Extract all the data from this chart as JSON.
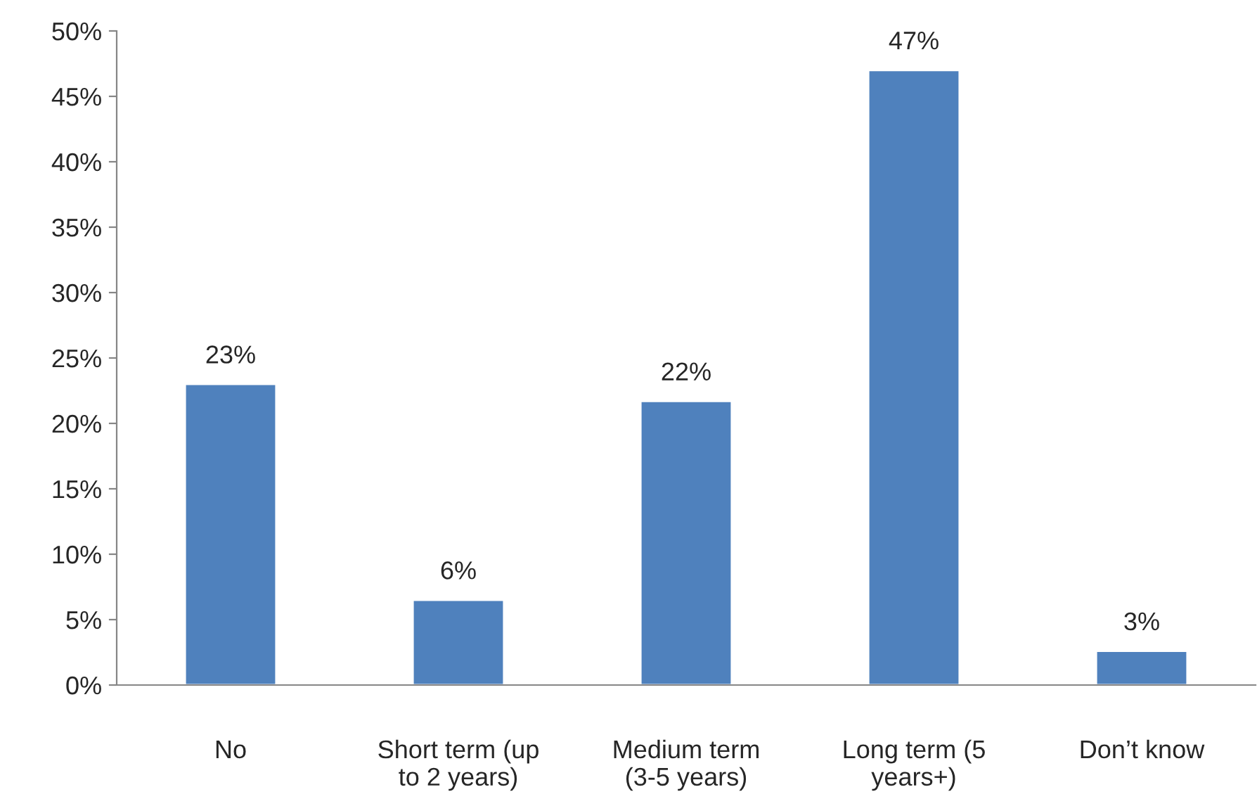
{
  "chart_data": {
    "type": "bar",
    "categories": [
      "No",
      "Short term (up\nto 2 years)",
      "Medium term\n(3-5 years)",
      "Long term (5\nyears+)",
      "Don’t know"
    ],
    "values": [
      23,
      6.5,
      21.7,
      47,
      2.6
    ],
    "value_labels": [
      "23%",
      "6%",
      "22%",
      "47%",
      "3%"
    ],
    "color": "#4f81bd",
    "ylim": [
      0,
      50
    ],
    "yticks": [
      {
        "value": 0,
        "label": "0%"
      },
      {
        "value": 5,
        "label": "5%"
      },
      {
        "value": 10,
        "label": "10%"
      },
      {
        "value": 15,
        "label": "15%"
      },
      {
        "value": 20,
        "label": "20%"
      },
      {
        "value": 25,
        "label": "25%"
      },
      {
        "value": 30,
        "label": "30%"
      },
      {
        "value": 35,
        "label": "35%"
      },
      {
        "value": 40,
        "label": "40%"
      },
      {
        "value": 45,
        "label": "45%"
      },
      {
        "value": 50,
        "label": "50%"
      }
    ],
    "grid": false,
    "legend": false
  }
}
